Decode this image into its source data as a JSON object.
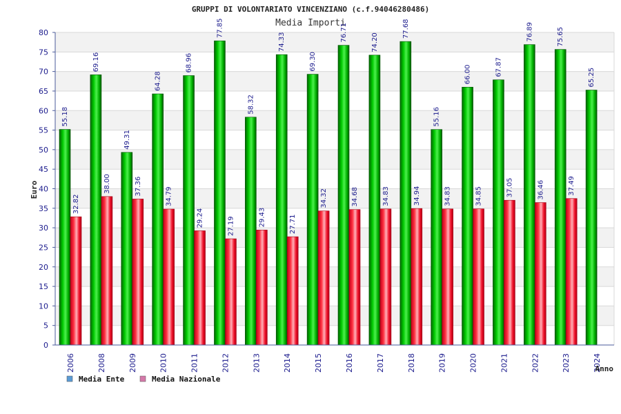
{
  "chart_data": {
    "type": "bar",
    "title": "GRUPPI DI VOLONTARIATO VINCENZIANO (c.f.94046280486)",
    "subtitle": "Media Importi",
    "xlabel": "Anno",
    "ylabel": "Euro",
    "ylim": [
      0,
      80
    ],
    "ytick_step": 5,
    "grid": true,
    "legend_position": "bottom-left",
    "categories": [
      "2006",
      "2008",
      "2009",
      "2010",
      "2011",
      "2012",
      "2013",
      "2014",
      "2015",
      "2016",
      "2017",
      "2018",
      "2019",
      "2020",
      "2021",
      "2022",
      "2023",
      "2024"
    ],
    "series": [
      {
        "name": "Media Ente",
        "color": "#00b400",
        "legend_color": "#5b9bd5",
        "values": [
          55.18,
          69.16,
          49.31,
          64.28,
          68.96,
          77.85,
          58.32,
          74.33,
          69.3,
          76.71,
          74.2,
          77.68,
          55.16,
          66.0,
          67.87,
          76.89,
          75.65,
          65.25
        ],
        "labels": [
          "55.18",
          "69.16",
          "49.31",
          "64.28",
          "68.96",
          "77.85",
          "58.32",
          "74.33",
          "69.30",
          "76.71",
          "74.20",
          "77.68",
          "55.16",
          "66.00",
          "67.87",
          "76.89",
          "75.65",
          "65.25"
        ]
      },
      {
        "name": "Media Nazionale",
        "color": "#e0001a",
        "legend_color": "#d479a9",
        "values": [
          32.82,
          38.0,
          37.36,
          34.79,
          29.24,
          27.19,
          29.43,
          27.71,
          34.32,
          34.68,
          34.83,
          34.94,
          34.83,
          34.85,
          37.05,
          36.46,
          37.49,
          null
        ],
        "labels": [
          "32.82",
          "38.00",
          "37.36",
          "34.79",
          "29.24",
          "27.19",
          "29.43",
          "27.71",
          "34.32",
          "34.68",
          "34.83",
          "34.94",
          "34.83",
          "34.85",
          "37.05",
          "36.46",
          "37.49",
          ""
        ]
      }
    ]
  }
}
